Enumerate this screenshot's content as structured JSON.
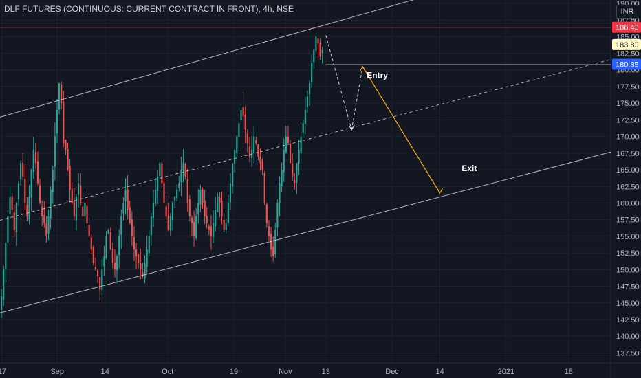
{
  "header": {
    "title": "DLF FUTURES (CONTINUOUS: CURRENT CONTRACT IN FRONT), 4h, NSE",
    "currency": "INR"
  },
  "colors": {
    "background": "#131722",
    "up": "#26a69a",
    "down": "#ef5350",
    "resistance": "#f23645",
    "entry_line": "#2962ff",
    "projection": "#f7a21b",
    "channel": "#d1d4dc"
  },
  "chart_data": {
    "type": "candlestick",
    "title": "DLF FUTURES (CONTINUOUS: CURRENT CONTRACT IN FRONT), 4h, NSE",
    "ylim": [
      136,
      190.5
    ],
    "y_ticks": [
      "137.50",
      "140.00",
      "142.50",
      "145.00",
      "147.50",
      "150.00",
      "152.50",
      "155.00",
      "157.50",
      "160.00",
      "162.50",
      "165.00",
      "167.50",
      "170.00",
      "172.50",
      "175.00",
      "177.50",
      "180.00",
      "182.50",
      "185.00",
      "187.50",
      "190.00"
    ],
    "x_ticks": [
      {
        "label": "17",
        "date": "2020-08-17"
      },
      {
        "label": "Sep",
        "date": "2020-09-01"
      },
      {
        "label": "14",
        "date": "2020-09-14"
      },
      {
        "label": "Oct",
        "date": "2020-10-01"
      },
      {
        "label": "19",
        "date": "2020-10-19"
      },
      {
        "label": "Nov",
        "date": "2020-11-02"
      },
      {
        "label": "13",
        "date": "2020-11-13"
      },
      {
        "label": "Dec",
        "date": "2020-12-01"
      },
      {
        "label": "14",
        "date": "2020-12-14"
      },
      {
        "label": "2021",
        "date": "2021-01-01"
      },
      {
        "label": "18",
        "date": "2021-01-18"
      }
    ],
    "x_range": [
      "2020-08-17",
      "2021-01-30"
    ],
    "candles_description": "approximate closes of 4h candles from 2020-08-17 to 2020-11-13",
    "closes": [
      146,
      150,
      154,
      158,
      161,
      159,
      156,
      160,
      163,
      166,
      164,
      160,
      158,
      161,
      165,
      168,
      166,
      163,
      160,
      158,
      157,
      155,
      158,
      162,
      165,
      170,
      174,
      178,
      175,
      169,
      168,
      165,
      162,
      160,
      158,
      161,
      163,
      160,
      158,
      160,
      157,
      155,
      153,
      151,
      150,
      149,
      147,
      150,
      152,
      155,
      156,
      153,
      151,
      150,
      152,
      155,
      158,
      160,
      162,
      159,
      157,
      155,
      153,
      152,
      151,
      150,
      149,
      151,
      153,
      155,
      158,
      160,
      162,
      164,
      166,
      163,
      160,
      158,
      156,
      158,
      160,
      161,
      162,
      163,
      165,
      166,
      164,
      160,
      158,
      157,
      155,
      158,
      160,
      162,
      160,
      158,
      157,
      156,
      155,
      157,
      159,
      161,
      160,
      158,
      156,
      157,
      160,
      163,
      166,
      168,
      170,
      172,
      174,
      173,
      171,
      169,
      167,
      168,
      170,
      169,
      167,
      166,
      165,
      160,
      157,
      155,
      153,
      152,
      156,
      160,
      163,
      165,
      168,
      170,
      169,
      166,
      164,
      163,
      166,
      168,
      170,
      172,
      174,
      176,
      178,
      181,
      183,
      185,
      184,
      182,
      183
    ],
    "price_labels": [
      {
        "value": 186.4,
        "text": "186.40",
        "color": "#f23645",
        "text_color": "#ffffff"
      },
      {
        "value": 183.8,
        "text": "183.80",
        "color": "#fff9c4",
        "text_color": "#131722"
      },
      {
        "value": 180.85,
        "text": "180.85",
        "color": "#2962ff",
        "text_color": "#ffffff"
      }
    ],
    "horizontal_lines": [
      {
        "name": "resistance",
        "value": 186.4
      },
      {
        "name": "entry",
        "value": 180.85,
        "from": "2020-11-13"
      }
    ],
    "channel": {
      "upper": {
        "from": {
          "date": "2020-08-17",
          "value": 173.0
        },
        "to": {
          "date": "2020-11-13",
          "value": 186.8
        }
      },
      "middle": {
        "from": {
          "date": "2020-08-17",
          "value": 157.5
        },
        "to": {
          "date": "2020-11-13",
          "value": 170.3
        }
      },
      "lower": {
        "from": {
          "date": "2020-08-17",
          "value": 143.6
        },
        "to": {
          "date": "2020-11-13",
          "value": 156.4
        }
      }
    },
    "projection": [
      {
        "date": "2020-11-13",
        "value": 185.2,
        "style": "dashed-white"
      },
      {
        "date": "2020-11-20",
        "value": 171.0,
        "style": "dashed-white"
      },
      {
        "date": "2020-11-23",
        "value": 180.5,
        "style": "orange"
      },
      {
        "date": "2020-12-14",
        "value": 161.5,
        "style": "orange"
      }
    ],
    "annotations": [
      {
        "text": "Entry",
        "date": "2020-11-27",
        "value": 178.8
      },
      {
        "text": "Exit",
        "date": "2020-12-22",
        "value": 164.8
      }
    ]
  }
}
